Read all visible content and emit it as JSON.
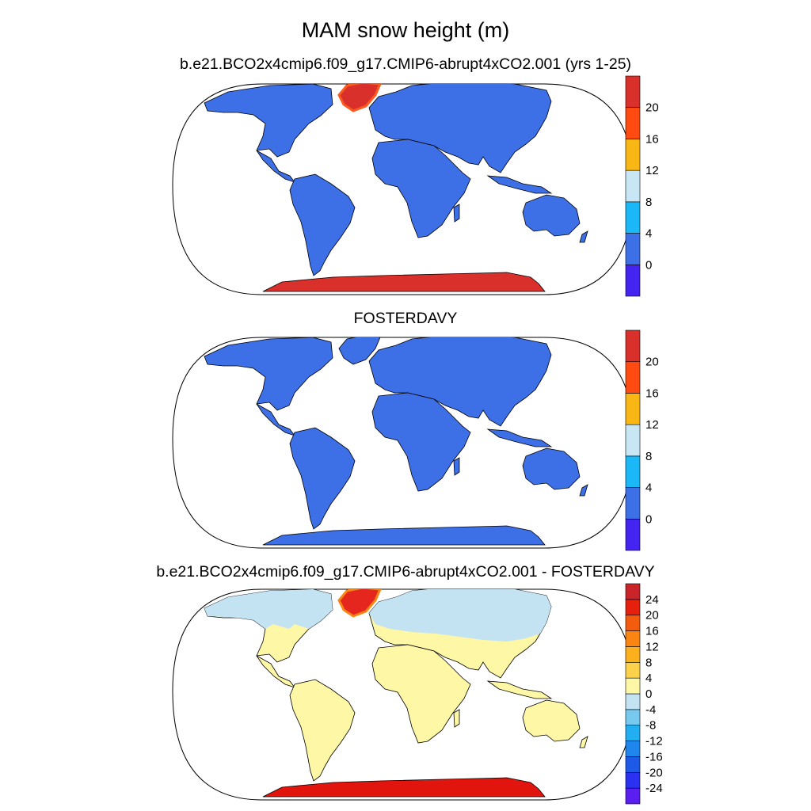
{
  "title": "MAM snow height (m)",
  "colors": {
    "ocean": "#ffffff",
    "land_dark": "#3d6fe6",
    "antarctica": "#d9302c",
    "greenland": "#d9302c",
    "greenland_edge": "#ff5a1e",
    "diff_land": "#fdf7a6",
    "diff_north": "#c3e3f2",
    "diff_greenland": "#e4261f",
    "diff_antarctica": "#e2140e",
    "coast": "#000000"
  },
  "panels": [
    {
      "id": "top",
      "title": "b.e21.BCO2x4cmip6.f09_g17.CMIP6-abrupt4xCO2.001 (yrs 1-25)",
      "colorbar": {
        "labels": [
          "20",
          "16",
          "12",
          "8",
          "4",
          "0"
        ],
        "colors": [
          "#4424f0",
          "#3d6fe6",
          "#1ab8f7",
          "#c8e6f4",
          "#f9b716",
          "#ff4a12",
          "#d9302c"
        ]
      }
    },
    {
      "id": "middle",
      "title": "FOSTERDAVY",
      "colorbar": {
        "labels": [
          "20",
          "16",
          "12",
          "8",
          "4",
          "0"
        ],
        "colors": [
          "#4424f0",
          "#3d6fe6",
          "#1ab8f7",
          "#c8e6f4",
          "#f9b716",
          "#ff4a12",
          "#d9302c"
        ]
      }
    },
    {
      "id": "bottom",
      "title": "b.e21.BCO2x4cmip6.f09_g17.CMIP6-abrupt4xCO2.001 - FOSTERDAVY",
      "colorbar": {
        "labels": [
          "24",
          "20",
          "16",
          "12",
          "8",
          "4",
          "0",
          "-4",
          "-8",
          "-12",
          "-16",
          "-20",
          "-24"
        ],
        "colors": [
          "#5a1ff0",
          "#2a31f0",
          "#1d5ae8",
          "#1e86ec",
          "#21aff2",
          "#77c9f0",
          "#c3e3f2",
          "#fdf7a6",
          "#fbd24a",
          "#fcb01e",
          "#fb8512",
          "#f35c0c",
          "#e5210e",
          "#c8242a"
        ]
      }
    }
  ]
}
